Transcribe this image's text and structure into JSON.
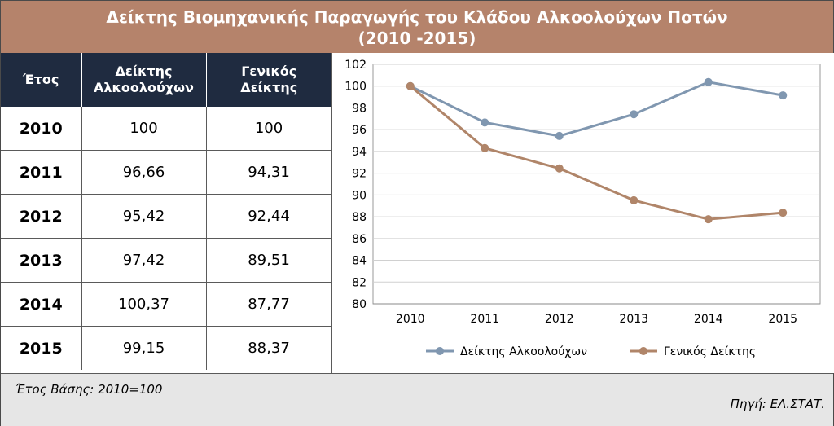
{
  "title": {
    "line1": "Δείκτης Βιομηχανικής Παραγωγής του Κλάδου Αλκοολούχων  Ποτών",
    "line2": "(2010 -2015)"
  },
  "table": {
    "headers": [
      {
        "line1": "Έτος",
        "line2": ""
      },
      {
        "line1": "Δείκτης",
        "line2": "Αλκοολούχων"
      },
      {
        "line1": "Γενικός",
        "line2": "Δείκτης"
      }
    ],
    "rows": [
      {
        "year": "2010",
        "alcohol": "100",
        "general": "100"
      },
      {
        "year": "2011",
        "alcohol": "96,66",
        "general": "94,31"
      },
      {
        "year": "2012",
        "alcohol": "95,42",
        "general": "92,44"
      },
      {
        "year": "2013",
        "alcohol": "97,42",
        "general": "89,51"
      },
      {
        "year": "2014",
        "alcohol": "100,37",
        "general": "87,77"
      },
      {
        "year": "2015",
        "alcohol": "99,15",
        "general": "88,37"
      }
    ]
  },
  "chart_data": {
    "type": "line",
    "x": [
      "2010",
      "2011",
      "2012",
      "2013",
      "2014",
      "2015"
    ],
    "series": [
      {
        "name": "Δείκτης Αλκοολούχων",
        "values": [
          100,
          96.66,
          95.42,
          97.42,
          100.37,
          99.15
        ],
        "color": "#8097b0"
      },
      {
        "name": "Γενικός Δείκτης",
        "values": [
          100,
          94.31,
          92.44,
          89.51,
          87.77,
          88.37
        ],
        "color": "#b08569"
      }
    ],
    "ylim": [
      80,
      102
    ],
    "yticks": [
      80,
      82,
      84,
      86,
      88,
      90,
      92,
      94,
      96,
      98,
      100,
      102
    ],
    "grid": true,
    "legend": "bottom"
  },
  "footer": {
    "base_year": "Έτος Βάσης: 2010=100",
    "source": "Πηγή: ΕΛ.ΣΤΑΤ."
  }
}
